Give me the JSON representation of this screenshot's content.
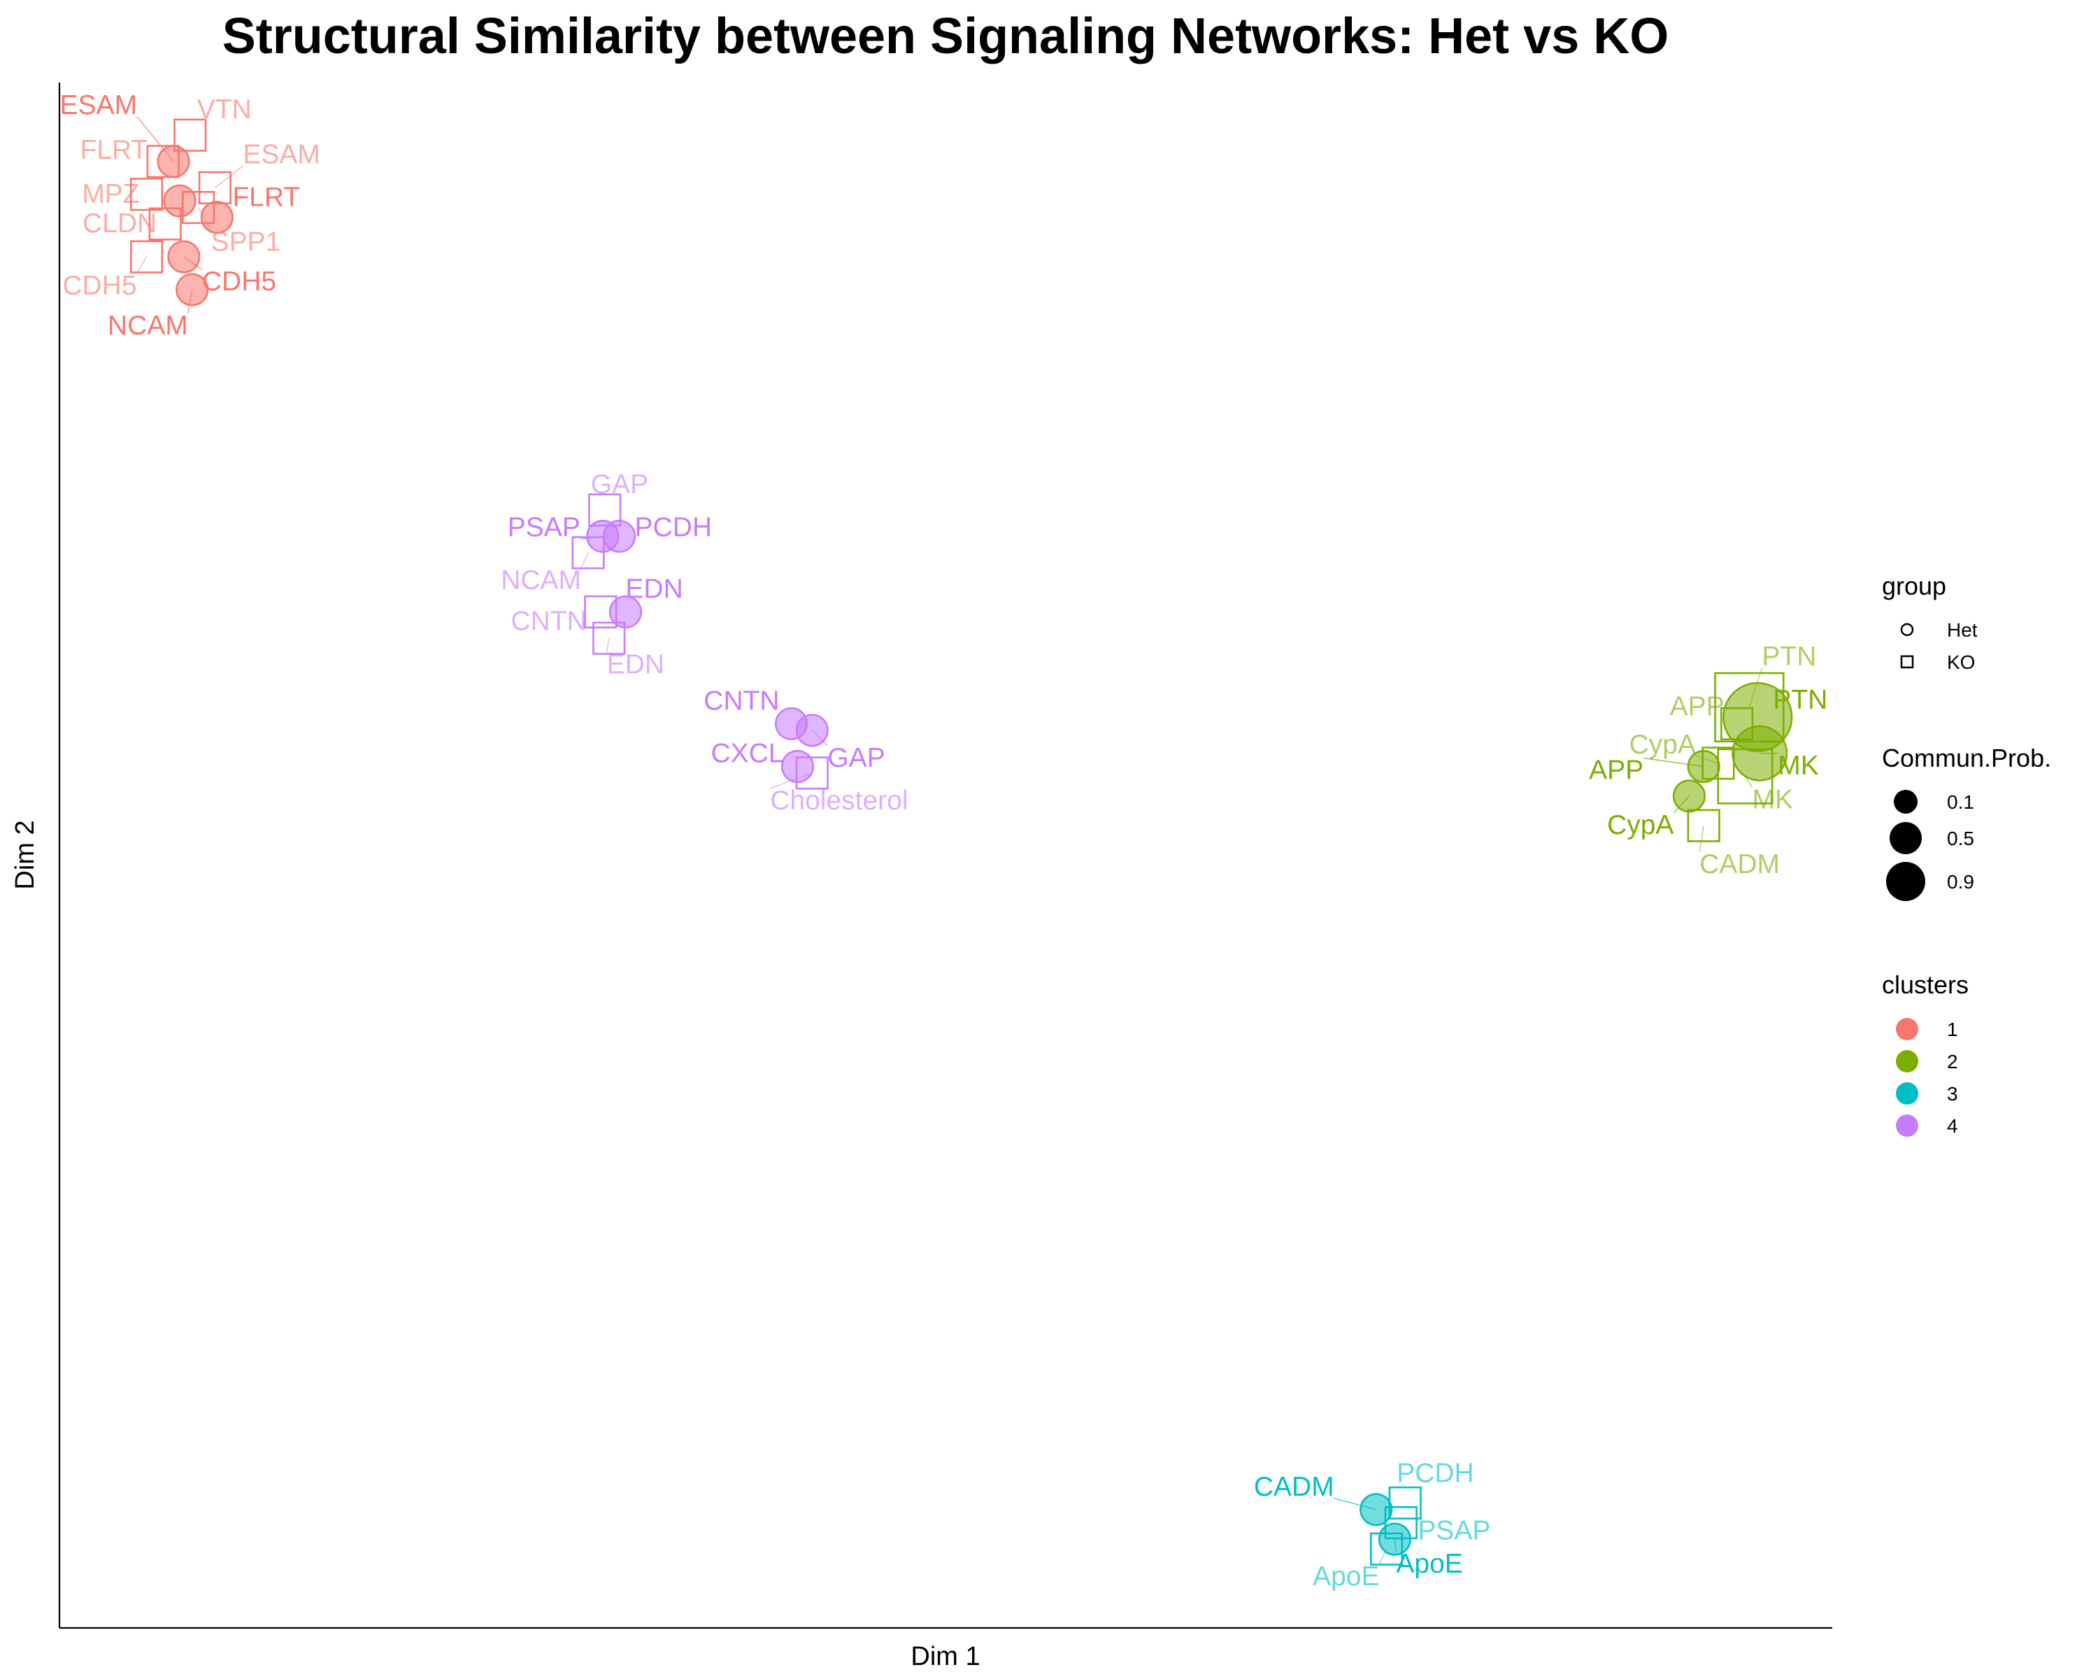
{
  "chart_data": {
    "type": "scatter",
    "title": "Structural Similarity between Signaling Networks: Het vs KO",
    "xlabel": "Dim 1",
    "ylabel": "Dim 2",
    "xlim": [
      -5.2,
      3.35
    ],
    "ylim": [
      -2.35,
      2.35
    ],
    "grid": false,
    "colors": {
      "1": "#F8766D",
      "2": "#7CAE00",
      "3": "#00BFC4",
      "4": "#C77CFF"
    },
    "points": [
      {
        "label": "ESAM",
        "group": "Het",
        "cluster": 1,
        "prob": 0.1,
        "x": -4.65,
        "y": 2.11
      },
      {
        "label": "ESAM",
        "group": "KO",
        "cluster": 1,
        "prob": 0.1,
        "x": -4.45,
        "y": 2.03
      },
      {
        "label": "VTN",
        "group": "KO",
        "cluster": 1,
        "prob": 0.1,
        "x": -4.57,
        "y": 2.19
      },
      {
        "label": "FLRT",
        "group": "KO",
        "cluster": 1,
        "prob": 0.1,
        "x": -4.7,
        "y": 2.11
      },
      {
        "label": "FLRT",
        "group": "Het",
        "cluster": 1,
        "prob": 0.1,
        "x": -4.44,
        "y": 1.94
      },
      {
        "label": "MPZ",
        "group": "KO",
        "cluster": 1,
        "prob": 0.1,
        "x": -4.78,
        "y": 2.01
      },
      {
        "label": "SPP1",
        "group": "KO",
        "cluster": 1,
        "prob": 0.1,
        "x": -4.53,
        "y": 1.97
      },
      {
        "label": "CLDN",
        "group": "KO",
        "cluster": 1,
        "prob": 0.1,
        "x": -4.69,
        "y": 1.92
      },
      {
        "label": "SPP1",
        "group": "Het",
        "cluster": 1,
        "prob": 0.1,
        "x": -4.62,
        "y": 1.99
      },
      {
        "label": "CDH5",
        "group": "KO",
        "cluster": 1,
        "prob": 0.1,
        "x": -4.78,
        "y": 1.82
      },
      {
        "label": "CDH5",
        "group": "Het",
        "cluster": 1,
        "prob": 0.1,
        "x": -4.6,
        "y": 1.82
      },
      {
        "label": "NCAM",
        "group": "Het",
        "cluster": 1,
        "prob": 0.1,
        "x": -4.56,
        "y": 1.72
      },
      {
        "label": "GAP",
        "group": "KO",
        "cluster": 4,
        "prob": 0.1,
        "x": -2.57,
        "y": 1.05
      },
      {
        "label": "PSAP",
        "group": "Het",
        "cluster": 4,
        "prob": 0.1,
        "x": -2.58,
        "y": 0.97
      },
      {
        "label": "PCDH",
        "group": "Het",
        "cluster": 4,
        "prob": 0.1,
        "x": -2.5,
        "y": 0.97
      },
      {
        "label": "NCAM",
        "group": "KO",
        "cluster": 4,
        "prob": 0.1,
        "x": -2.65,
        "y": 0.92
      },
      {
        "label": "EDN",
        "group": "Het",
        "cluster": 4,
        "prob": 0.1,
        "x": -2.47,
        "y": 0.74
      },
      {
        "label": "CNTN",
        "group": "KO",
        "cluster": 4,
        "prob": 0.1,
        "x": -2.59,
        "y": 0.74
      },
      {
        "label": "EDN",
        "group": "KO",
        "cluster": 4,
        "prob": 0.1,
        "x": -2.55,
        "y": 0.66
      },
      {
        "label": "CNTN",
        "group": "Het",
        "cluster": 4,
        "prob": 0.1,
        "x": -1.67,
        "y": 0.4
      },
      {
        "label": "GAP",
        "group": "Het",
        "cluster": 4,
        "prob": 0.1,
        "x": -1.57,
        "y": 0.38
      },
      {
        "label": "CXCL",
        "group": "Het",
        "cluster": 4,
        "prob": 0.1,
        "x": -1.64,
        "y": 0.27
      },
      {
        "label": "Cholesterol",
        "group": "KO",
        "cluster": 4,
        "prob": 0.1,
        "x": -1.57,
        "y": 0.25
      },
      {
        "label": "PTN",
        "group": "KO",
        "cluster": 2,
        "prob": 0.9,
        "x": 2.95,
        "y": 0.45
      },
      {
        "label": "PTN",
        "group": "Het",
        "cluster": 2,
        "prob": 0.9,
        "x": 2.99,
        "y": 0.42
      },
      {
        "label": "APP",
        "group": "KO",
        "cluster": 2,
        "prob": 0.1,
        "x": 2.89,
        "y": 0.4
      },
      {
        "label": "MK",
        "group": "Het",
        "cluster": 2,
        "prob": 0.5,
        "x": 3.0,
        "y": 0.31
      },
      {
        "label": "CypA",
        "group": "KO",
        "cluster": 2,
        "prob": 0.1,
        "x": 2.8,
        "y": 0.28
      },
      {
        "label": "APP",
        "group": "Het",
        "cluster": 2,
        "prob": 0.1,
        "x": 2.73,
        "y": 0.27
      },
      {
        "label": "MK",
        "group": "KO",
        "cluster": 2,
        "prob": 0.5,
        "x": 2.93,
        "y": 0.24
      },
      {
        "label": "CypA",
        "group": "Het",
        "cluster": 2,
        "prob": 0.1,
        "x": 2.66,
        "y": 0.18
      },
      {
        "label": "CADM",
        "group": "KO",
        "cluster": 2,
        "prob": 0.1,
        "x": 2.73,
        "y": 0.09
      },
      {
        "label": "CADM",
        "group": "Het",
        "cluster": 3,
        "prob": 0.1,
        "x": 1.15,
        "y": -1.99
      },
      {
        "label": "PCDH",
        "group": "KO",
        "cluster": 3,
        "prob": 0.1,
        "x": 1.29,
        "y": -1.97
      },
      {
        "label": "PSAP",
        "group": "KO",
        "cluster": 3,
        "prob": 0.1,
        "x": 1.27,
        "y": -2.03
      },
      {
        "label": "ApoE",
        "group": "Het",
        "cluster": 3,
        "prob": 0.1,
        "x": 1.24,
        "y": -2.08
      },
      {
        "label": "ApoE",
        "group": "KO",
        "cluster": 3,
        "prob": 0.1,
        "x": 1.2,
        "y": -2.11
      }
    ]
  },
  "legend": {
    "group": {
      "title": "group",
      "items": [
        {
          "label": "Het",
          "shape": "circle"
        },
        {
          "label": "KO",
          "shape": "square"
        }
      ]
    },
    "size": {
      "title": "Commun.Prob.",
      "items": [
        {
          "label": "0.1",
          "value": 0.1
        },
        {
          "label": "0.5",
          "value": 0.5
        },
        {
          "label": "0.9",
          "value": 0.9
        }
      ]
    },
    "clusters": {
      "title": "clusters",
      "items": [
        {
          "label": "1",
          "color": "#F8766D"
        },
        {
          "label": "2",
          "color": "#7CAE00"
        },
        {
          "label": "3",
          "color": "#00BFC4"
        },
        {
          "label": "4",
          "color": "#C77CFF"
        }
      ]
    }
  }
}
